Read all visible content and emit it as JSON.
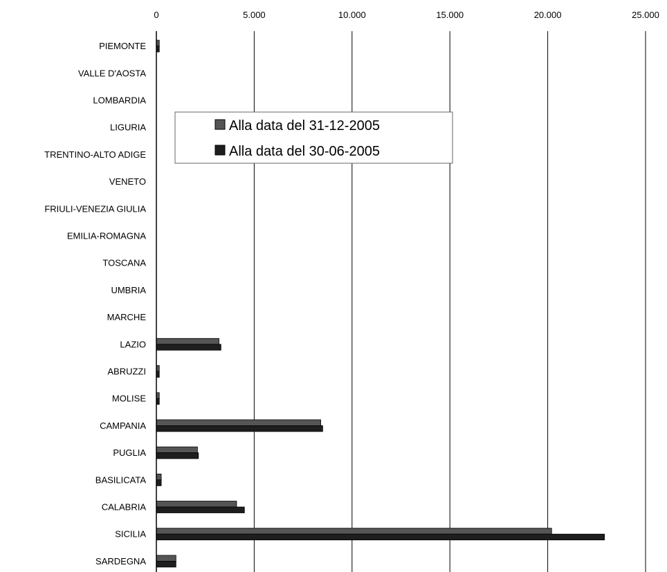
{
  "chart_data": {
    "type": "bar",
    "orientation": "horizontal",
    "title": "",
    "xlabel": "",
    "ylabel": "",
    "xlim": [
      0,
      25000
    ],
    "x_ticks": [
      0,
      5000,
      10000,
      15000,
      20000,
      25000
    ],
    "x_tick_labels": [
      "0",
      "5.000",
      "10.000",
      "15.000",
      "20.000",
      "25.000"
    ],
    "x_axis_position": "top",
    "grid": "vertical",
    "legend_position": "upper-left-inside",
    "categories": [
      "PIEMONTE",
      "VALLE D'AOSTA",
      "LOMBARDIA",
      "LIGURIA",
      "TRENTINO-ALTO ADIGE",
      "VENETO",
      "FRIULI-VENEZIA GIULIA",
      "EMILIA-ROMAGNA",
      "TOSCANA",
      "UMBRIA",
      "MARCHE",
      "LAZIO",
      "ABRUZZI",
      "MOLISE",
      "CAMPANIA",
      "PUGLIA",
      "BASILICATA",
      "CALABRIA",
      "SICILIA",
      "SARDEGNA"
    ],
    "series": [
      {
        "name": "Alla data del 31-12-2005",
        "color": "#555555",
        "values": [
          150,
          0,
          0,
          0,
          0,
          0,
          0,
          0,
          0,
          0,
          0,
          3200,
          150,
          150,
          8400,
          2100,
          250,
          4100,
          20200,
          1000
        ]
      },
      {
        "name": "Alla data del 30-06-2005",
        "color": "#1e1e1e",
        "values": [
          150,
          0,
          0,
          0,
          0,
          0,
          0,
          0,
          0,
          0,
          0,
          3300,
          150,
          150,
          8500,
          2150,
          250,
          4500,
          22900,
          1000
        ]
      }
    ]
  }
}
